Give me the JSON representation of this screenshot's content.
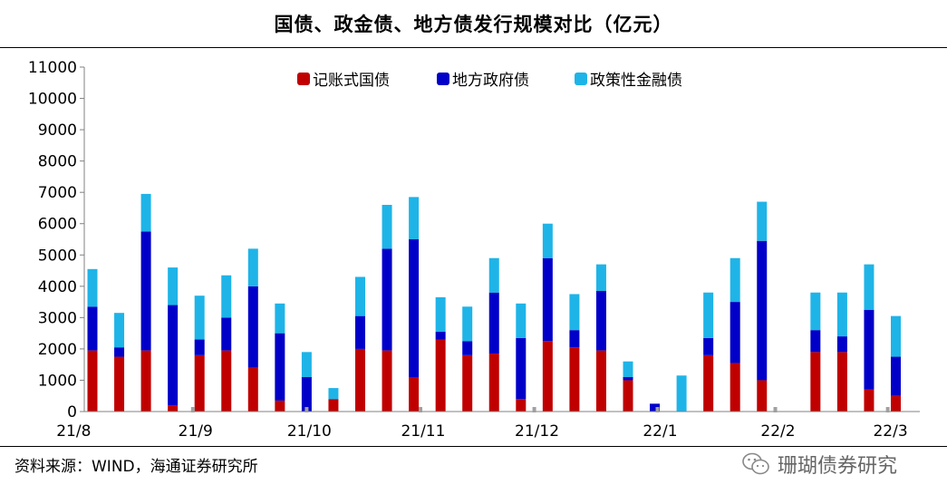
{
  "header": {
    "title": "国债、政金债、地方债发行规模对比（亿元）"
  },
  "footer": {
    "source": "资料来源：WIND，海通证券研究所",
    "watermark": "珊瑚债券研究"
  },
  "colors": {
    "treasury": "#C00000",
    "local": "#0000C8",
    "policy": "#1EB4E8"
  },
  "chart_data": {
    "type": "bar",
    "stacked": true,
    "title": "国债、政金债、地方债发行规模对比（亿元）",
    "xlabel": "",
    "ylabel": "",
    "ylim": [
      0,
      11000
    ],
    "yticks": [
      0,
      1000,
      2000,
      3000,
      4000,
      5000,
      6000,
      7000,
      8000,
      9000,
      10000,
      11000
    ],
    "x_tick_labels": [
      {
        "label": "21/8",
        "index": -0.7
      },
      {
        "label": "21/9",
        "index": 3.85
      },
      {
        "label": "21/10",
        "index": 8.1
      },
      {
        "label": "21/11",
        "index": 12.35
      },
      {
        "label": "21/12",
        "index": 16.6
      },
      {
        "label": "22/1",
        "index": 21.2
      },
      {
        "label": "22/2",
        "index": 25.6
      },
      {
        "label": "22/3",
        "index": 29.8
      }
    ],
    "legend": {
      "position": "top-center",
      "entries": [
        "记账式国债",
        "地方政府债",
        "政策性金融债"
      ]
    },
    "series": [
      {
        "name": "记账式国债",
        "values": [
          1950,
          1750,
          1950,
          200,
          1800,
          1950,
          1400,
          350,
          0,
          400,
          2000,
          1950,
          1100,
          2300,
          1800,
          1850,
          400,
          2250,
          2050,
          1950,
          1000,
          0,
          0,
          1800,
          1550,
          1000,
          0,
          1900,
          1900,
          700,
          500
        ]
      },
      {
        "name": "地方政府债",
        "values": [
          1400,
          300,
          3800,
          3200,
          500,
          1050,
          2600,
          2150,
          1100,
          0,
          1050,
          3250,
          4400,
          250,
          450,
          1950,
          1950,
          2650,
          550,
          1900,
          100,
          250,
          0,
          550,
          1950,
          4450,
          0,
          700,
          500,
          2550,
          1250
        ]
      },
      {
        "name": "政策性金融债",
        "values": [
          1200,
          1100,
          1200,
          1200,
          1400,
          1350,
          1200,
          950,
          800,
          350,
          1250,
          1400,
          1350,
          1100,
          1100,
          1100,
          1100,
          1100,
          1150,
          850,
          500,
          0,
          1150,
          1450,
          1400,
          1250,
          0,
          1200,
          1400,
          1450,
          1300
        ]
      }
    ]
  }
}
